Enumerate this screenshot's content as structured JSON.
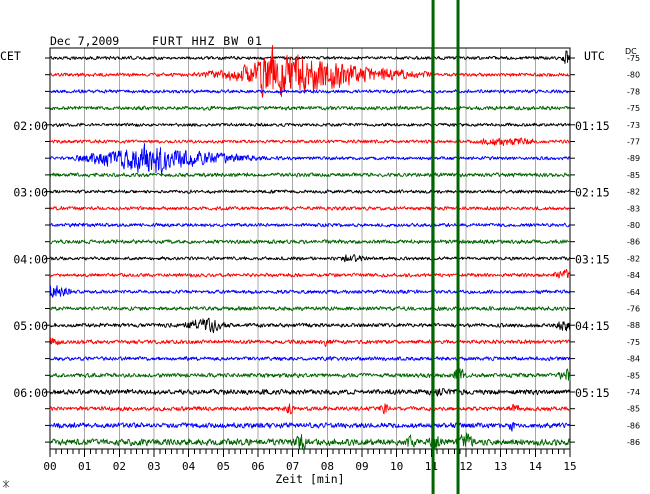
{
  "chart_data": {
    "type": "line",
    "title": "Dec 7,2009",
    "subtitle": "FURT HHZ BW 01",
    "xlabel": "Zeit [min]",
    "xlim": [
      0,
      15
    ],
    "x_ticks": [
      0,
      1,
      2,
      3,
      4,
      5,
      6,
      7,
      8,
      9,
      10,
      11,
      12,
      13,
      14,
      15
    ],
    "x_tick_labels": [
      "00",
      "01",
      "02",
      "03",
      "04",
      "05",
      "06",
      "07",
      "08",
      "09",
      "10",
      "11",
      "12",
      "13",
      "14",
      "15"
    ],
    "grid": true,
    "left_timezone": "CET",
    "right_timezone": "UTC",
    "dc_header": "DC",
    "left_time_labels": [
      {
        "row": 4,
        "text": "02:00"
      },
      {
        "row": 8,
        "text": "03:00"
      },
      {
        "row": 12,
        "text": "04:00"
      },
      {
        "row": 16,
        "text": "05:00"
      },
      {
        "row": 20,
        "text": "06:00"
      }
    ],
    "right_time_labels": [
      {
        "row": 4,
        "text": "01:15"
      },
      {
        "row": 8,
        "text": "02:15"
      },
      {
        "row": 12,
        "text": "03:15"
      },
      {
        "row": 16,
        "text": "04:15"
      },
      {
        "row": 20,
        "text": "05:15"
      }
    ],
    "palette": {
      "black": "#000000",
      "red": "#ff0000",
      "blue": "#0000ff",
      "green": "#006400",
      "grid": "#a8a8a8",
      "frame": "#000000",
      "marker": "#006400"
    },
    "traces": [
      {
        "color": "black",
        "dc": "-75",
        "noise": 0.11,
        "envelope": [
          [
            14.75,
            0
          ],
          [
            14.9,
            0.45
          ],
          [
            15,
            0.25
          ]
        ]
      },
      {
        "color": "red",
        "dc": "-80",
        "noise": 0.12,
        "envelope": [
          [
            4.1,
            0
          ],
          [
            4.6,
            0.12
          ],
          [
            5.2,
            0.3
          ],
          [
            5.8,
            0.65
          ],
          [
            6.05,
            1.3
          ],
          [
            6.4,
            1.8
          ],
          [
            6.9,
            1.8
          ],
          [
            7.2,
            1.5
          ],
          [
            7.7,
            1.1
          ],
          [
            8.2,
            0.85
          ],
          [
            8.9,
            0.45
          ],
          [
            9.6,
            0.3
          ],
          [
            10.2,
            0.2
          ],
          [
            11.0,
            0.05
          ]
        ]
      },
      {
        "color": "blue",
        "dc": "-78",
        "noise": 0.11,
        "envelope": []
      },
      {
        "color": "green",
        "dc": "-75",
        "noise": 0.13,
        "envelope": []
      },
      {
        "color": "black",
        "dc": "-73",
        "noise": 0.11,
        "envelope": []
      },
      {
        "color": "red",
        "dc": "-77",
        "noise": 0.11,
        "envelope": [
          [
            12.2,
            0
          ],
          [
            12.8,
            0.2
          ],
          [
            13.5,
            0.18
          ],
          [
            14.1,
            0
          ]
        ]
      },
      {
        "color": "blue",
        "dc": "-89",
        "noise": 0.11,
        "envelope": [
          [
            0.6,
            0
          ],
          [
            1.1,
            0.25
          ],
          [
            1.8,
            0.5
          ],
          [
            2.4,
            0.8
          ],
          [
            2.8,
            1.1
          ],
          [
            3.05,
            1.0
          ],
          [
            3.5,
            0.6
          ],
          [
            4.3,
            0.35
          ],
          [
            5.2,
            0.2
          ],
          [
            6.2,
            0
          ]
        ]
      },
      {
        "color": "green",
        "dc": "-85",
        "noise": 0.13,
        "envelope": []
      },
      {
        "color": "black",
        "dc": "-82",
        "noise": 0.11,
        "envelope": []
      },
      {
        "color": "red",
        "dc": "-83",
        "noise": 0.12,
        "envelope": []
      },
      {
        "color": "blue",
        "dc": "-80",
        "noise": 0.12,
        "envelope": []
      },
      {
        "color": "green",
        "dc": "-86",
        "noise": 0.13,
        "envelope": []
      },
      {
        "color": "black",
        "dc": "-82",
        "noise": 0.11,
        "envelope": [
          [
            8.3,
            0
          ],
          [
            8.7,
            0.25
          ],
          [
            9.1,
            0
          ]
        ]
      },
      {
        "color": "red",
        "dc": "-84",
        "noise": 0.12,
        "envelope": [
          [
            14.4,
            0
          ],
          [
            14.8,
            0.3
          ],
          [
            15,
            0.3
          ]
        ]
      },
      {
        "color": "blue",
        "dc": "-64",
        "noise": 0.12,
        "envelope": [
          [
            0,
            0.35
          ],
          [
            0.35,
            0.25
          ],
          [
            0.7,
            0
          ]
        ]
      },
      {
        "color": "green",
        "dc": "-76",
        "noise": 0.13,
        "envelope": []
      },
      {
        "color": "black",
        "dc": "-88",
        "noise": 0.13,
        "envelope": [
          [
            3.8,
            0
          ],
          [
            4.3,
            0.35
          ],
          [
            4.7,
            0.35
          ],
          [
            5.1,
            0
          ],
          [
            14.5,
            0
          ],
          [
            14.85,
            0.3
          ],
          [
            15,
            0.3
          ]
        ]
      },
      {
        "color": "red",
        "dc": "-75",
        "noise": 0.13,
        "envelope": [
          [
            0,
            0.3
          ],
          [
            0.35,
            0
          ],
          [
            7.7,
            0
          ],
          [
            7.95,
            0.15
          ],
          [
            8.2,
            0
          ]
        ]
      },
      {
        "color": "blue",
        "dc": "-84",
        "noise": 0.13,
        "envelope": []
      },
      {
        "color": "green",
        "dc": "-85",
        "noise": 0.14,
        "envelope": [
          [
            11.6,
            0
          ],
          [
            11.8,
            0.6
          ],
          [
            12.0,
            0
          ],
          [
            14.6,
            0
          ],
          [
            14.95,
            0.4
          ],
          [
            15,
            0.3
          ]
        ]
      },
      {
        "color": "black",
        "dc": "-74",
        "noise": 0.17,
        "envelope": [
          [
            10.8,
            0
          ],
          [
            11.3,
            0.12
          ],
          [
            12,
            0
          ]
        ]
      },
      {
        "color": "red",
        "dc": "-85",
        "noise": 0.14,
        "envelope": [
          [
            6.7,
            0
          ],
          [
            6.9,
            0.3
          ],
          [
            7.1,
            0
          ],
          [
            9.45,
            0
          ],
          [
            9.65,
            0.3
          ],
          [
            9.85,
            0
          ],
          [
            13.2,
            0
          ],
          [
            13.4,
            0.18
          ],
          [
            13.6,
            0
          ]
        ]
      },
      {
        "color": "blue",
        "dc": "-86",
        "noise": 0.17,
        "envelope": [
          [
            13.22,
            0
          ],
          [
            13.32,
            0.65
          ],
          [
            13.42,
            0
          ]
        ]
      },
      {
        "color": "green",
        "dc": "-86",
        "noise": 0.22,
        "envelope": [
          [
            7.0,
            0
          ],
          [
            7.25,
            0.35
          ],
          [
            7.5,
            0
          ],
          [
            10.2,
            0
          ],
          [
            10.4,
            0.3
          ],
          [
            10.6,
            0
          ],
          [
            10.9,
            0
          ],
          [
            11.1,
            0.45
          ],
          [
            11.3,
            0
          ],
          [
            11.7,
            0
          ],
          [
            11.95,
            0.45
          ],
          [
            12.3,
            0
          ]
        ]
      }
    ],
    "markers": [
      {
        "x": 11.05
      },
      {
        "x": 11.77
      }
    ]
  }
}
